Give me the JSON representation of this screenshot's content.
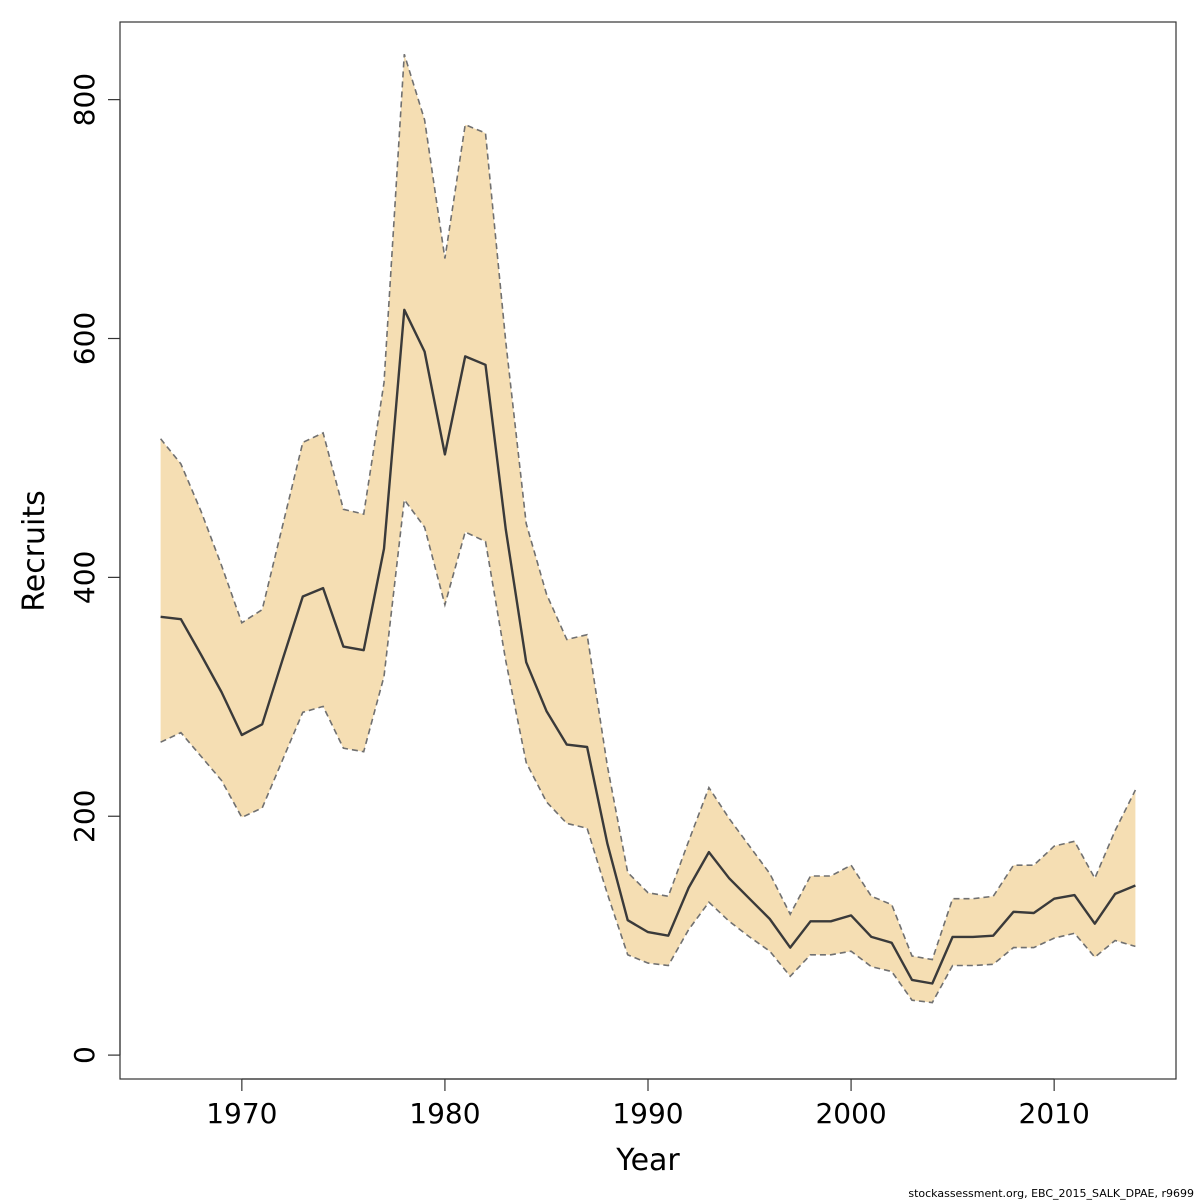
{
  "chart_data": {
    "type": "area",
    "xlabel": "Year",
    "ylabel": "Recruits",
    "xlim": [
      1964,
      2016
    ],
    "ylim": [
      -20,
      865
    ],
    "xticks": [
      1970,
      1980,
      1990,
      2000,
      2010
    ],
    "yticks": [
      0,
      200,
      400,
      600,
      800
    ],
    "grid": false,
    "x": [
      1966,
      1967,
      1968,
      1969,
      1970,
      1971,
      1972,
      1973,
      1974,
      1975,
      1976,
      1977,
      1978,
      1979,
      1980,
      1981,
      1982,
      1983,
      1984,
      1985,
      1986,
      1987,
      1988,
      1989,
      1990,
      1991,
      1992,
      1993,
      1994,
      1995,
      1996,
      1997,
      1998,
      1999,
      2000,
      2001,
      2002,
      2003,
      2004,
      2005,
      2006,
      2007,
      2008,
      2009,
      2010,
      2011,
      2012,
      2013,
      2014
    ],
    "series": [
      {
        "role": "median",
        "values": [
          367,
          365,
          335,
          304,
          268,
          277,
          331,
          384,
          391,
          342,
          339,
          424,
          624,
          589,
          503,
          585,
          578,
          440,
          329,
          288,
          260,
          258,
          177,
          113,
          103,
          100,
          140,
          170,
          148,
          131,
          114,
          90,
          112,
          112,
          117,
          99,
          94,
          63,
          60,
          99,
          99,
          100,
          120,
          119,
          131,
          134,
          110,
          135,
          142
        ]
      },
      {
        "role": "upper",
        "values": [
          516,
          495,
          455,
          410,
          362,
          373,
          443,
          513,
          521,
          457,
          453,
          563,
          838,
          783,
          667,
          779,
          772,
          597,
          445,
          386,
          348,
          352,
          242,
          153,
          136,
          133,
          179,
          224,
          198,
          175,
          152,
          118,
          150,
          150,
          159,
          133,
          126,
          83,
          80,
          131,
          131,
          133,
          159,
          159,
          175,
          179,
          148,
          188,
          222
        ]
      },
      {
        "role": "lower",
        "values": [
          262,
          270,
          250,
          230,
          199,
          207,
          247,
          287,
          292,
          257,
          254,
          317,
          465,
          442,
          377,
          438,
          430,
          330,
          245,
          212,
          194,
          190,
          135,
          84,
          77,
          75,
          105,
          128,
          112,
          99,
          87,
          66,
          84,
          84,
          87,
          74,
          70,
          46,
          44,
          75,
          75,
          76,
          90,
          90,
          98,
          102,
          82,
          96,
          91
        ]
      }
    ],
    "colors": {
      "band_fill": "#f5deb3",
      "band_edge": "#707070",
      "median_line": "#3a3a3a"
    },
    "footer": "stockassessment.org, EBC_2015_SALK_DPAE, r9699"
  }
}
